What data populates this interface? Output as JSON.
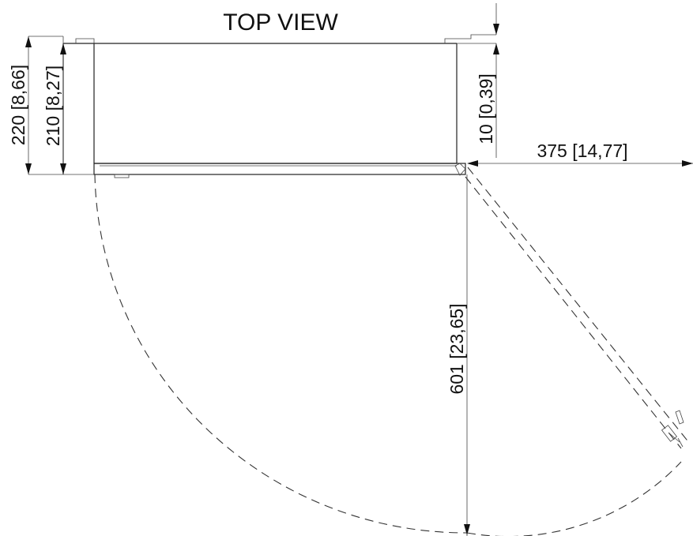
{
  "title": "TOP VIEW",
  "dimensions": {
    "overall_depth": "220 [8,66]",
    "body_depth": "210 [8,27]",
    "door_thickness": "10 [0,39]",
    "hinge_to_edge": "375 [14,77]",
    "door_swing": "601 [23,65]"
  }
}
